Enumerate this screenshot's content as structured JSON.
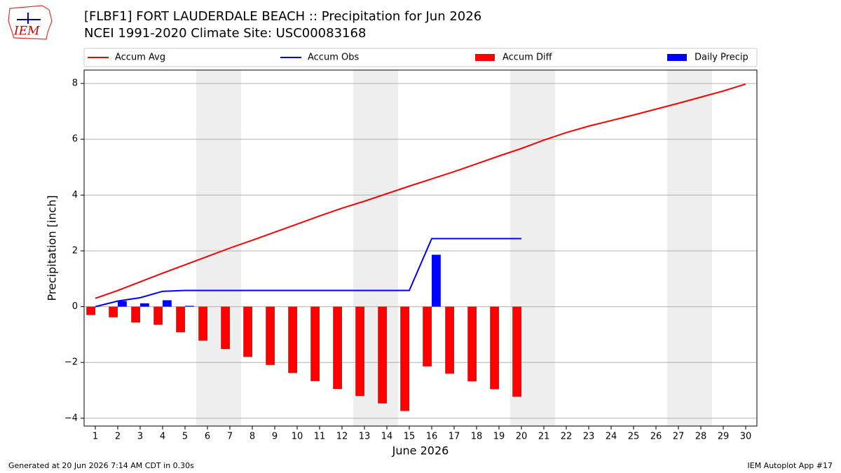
{
  "logo_text": "IEM",
  "footer": {
    "left": "Generated at 20 Jun 2026 7:14 AM CDT in 0.30s",
    "right": "IEM Autoplot App #17"
  },
  "chart_data": {
    "type": "line",
    "title": "[FLBF1] FORT LAUDERDALE BEACH :: Precipitation for Jun 2026",
    "subtitle": "NCEI 1991-2020 Climate Site: USC00083168",
    "x_label": "June 2026",
    "y_label": "Precipitation [inch]",
    "x": [
      1,
      2,
      3,
      4,
      5,
      6,
      7,
      8,
      9,
      10,
      11,
      12,
      13,
      14,
      15,
      16,
      17,
      18,
      19,
      20,
      21,
      22,
      23,
      24,
      25,
      26,
      27,
      28,
      29,
      30
    ],
    "xlim": [
      0.5,
      30.5
    ],
    "xticks": [
      1,
      2,
      3,
      4,
      5,
      6,
      7,
      8,
      9,
      10,
      11,
      12,
      13,
      14,
      15,
      16,
      17,
      18,
      19,
      20,
      21,
      22,
      23,
      24,
      25,
      26,
      27,
      28,
      29,
      30
    ],
    "ylim": [
      -4.28,
      8.48
    ],
    "yticks": [
      {
        "value": -4,
        "label": "−4"
      },
      {
        "value": -2,
        "label": "−2"
      },
      0,
      2,
      4,
      6,
      8
    ],
    "grid": true,
    "shaded_spans": [
      [
        5.5,
        7.5
      ],
      [
        12.5,
        14.5
      ],
      [
        19.5,
        21.5
      ],
      [
        26.5,
        28.5
      ]
    ],
    "legend": "top",
    "series": [
      {
        "name": "Accum Avg",
        "type": "line",
        "color": "#ff0000",
        "values": [
          0.3,
          0.58,
          0.89,
          1.2,
          1.5,
          1.8,
          2.1,
          2.38,
          2.67,
          2.96,
          3.25,
          3.53,
          3.78,
          4.05,
          4.32,
          4.58,
          4.84,
          5.12,
          5.4,
          5.67,
          5.97,
          6.24,
          6.47,
          6.67,
          6.87,
          7.08,
          7.29,
          7.51,
          7.73,
          7.98
        ]
      },
      {
        "name": "Accum Obs",
        "type": "line",
        "color": "#0000ff",
        "values": [
          0,
          0.2,
          0.32,
          0.55,
          0.58,
          0.58,
          0.58,
          0.58,
          0.58,
          0.58,
          0.58,
          0.58,
          0.58,
          0.58,
          0.58,
          2.44,
          2.44,
          2.44,
          2.44,
          2.44,
          null,
          null,
          null,
          null,
          null,
          null,
          null,
          null,
          null,
          null
        ]
      },
      {
        "name": "Accum Diff",
        "type": "bar",
        "color": "#ff0000",
        "values": [
          -0.3,
          -0.38,
          -0.57,
          -0.65,
          -0.92,
          -1.22,
          -1.52,
          -1.8,
          -2.09,
          -2.38,
          -2.67,
          -2.95,
          -3.2,
          -3.47,
          -3.74,
          -2.14,
          -2.4,
          -2.68,
          -2.96,
          -3.23,
          null,
          null,
          null,
          null,
          null,
          null,
          null,
          null,
          null,
          null
        ]
      },
      {
        "name": "Daily Precip",
        "type": "bar",
        "color": "#0000ff",
        "values": [
          0,
          0.2,
          0.12,
          0.23,
          0.03,
          0,
          0,
          0,
          0,
          0,
          0,
          0,
          0,
          0,
          0,
          1.86,
          0,
          0,
          0,
          0,
          null,
          null,
          null,
          null,
          null,
          null,
          null,
          null,
          null,
          null
        ]
      }
    ]
  }
}
